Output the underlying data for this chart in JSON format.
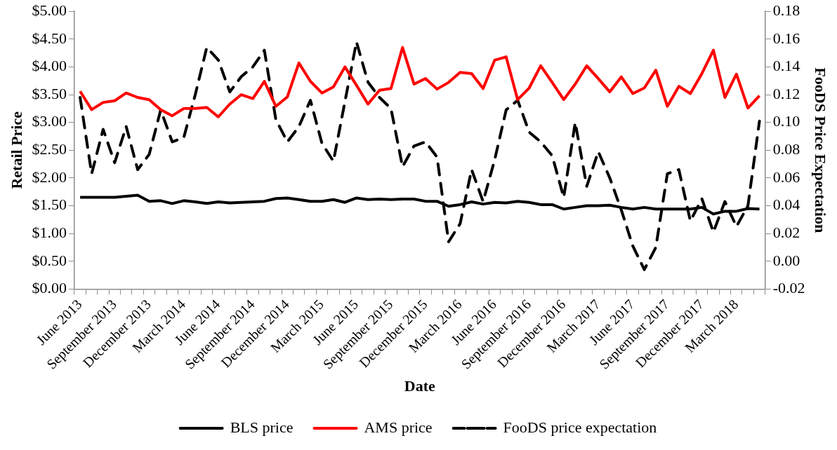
{
  "chart_data": {
    "type": "line",
    "xlabel": "Date",
    "ylabel": "Retail Price",
    "y2label": "FooDS Price Expectation",
    "categories": [
      "June 2013",
      null,
      null,
      "September 2013",
      null,
      null,
      "December 2013",
      null,
      null,
      "March 2014",
      null,
      null,
      "June 2014",
      null,
      null,
      "September 2014",
      null,
      null,
      "December 2014",
      null,
      null,
      "March 2015",
      null,
      null,
      "June 2015",
      null,
      null,
      "September 2015",
      null,
      null,
      "December 2015",
      null,
      null,
      "March 2016",
      null,
      null,
      "June 2016",
      null,
      null,
      "September 2016",
      null,
      null,
      "December 2016",
      null,
      null,
      "March 2017",
      null,
      null,
      "June 2017",
      null,
      null,
      "September 2017",
      null,
      null,
      "December 2017",
      null,
      null,
      "March 2018",
      null,
      null
    ],
    "series": [
      {
        "name": "BLS price",
        "color": "#000000",
        "line_style": "solid",
        "values": [
          1.65,
          1.65,
          1.65,
          1.65,
          1.67,
          1.69,
          1.58,
          1.59,
          1.54,
          1.59,
          1.57,
          1.54,
          1.57,
          1.55,
          1.56,
          1.57,
          1.58,
          1.63,
          1.64,
          1.61,
          1.58,
          1.58,
          1.61,
          1.56,
          1.64,
          1.61,
          1.62,
          1.61,
          1.62,
          1.62,
          1.58,
          1.58,
          1.49,
          1.52,
          1.57,
          1.53,
          1.56,
          1.55,
          1.58,
          1.56,
          1.52,
          1.52,
          1.44,
          1.47,
          1.5,
          1.5,
          1.51,
          1.47,
          1.44,
          1.47,
          1.44,
          1.44,
          1.44,
          1.44,
          1.47,
          1.35,
          1.4,
          1.4,
          1.45,
          1.44
        ]
      },
      {
        "name": "AMS price",
        "color": "#ff0000",
        "line_style": "solid",
        "values": [
          3.56,
          3.23,
          3.36,
          3.39,
          3.53,
          3.45,
          3.41,
          3.23,
          3.12,
          3.25,
          3.25,
          3.27,
          3.1,
          3.33,
          3.5,
          3.43,
          3.74,
          3.29,
          3.46,
          4.07,
          3.74,
          3.53,
          3.64,
          4.0,
          3.67,
          3.33,
          3.58,
          3.61,
          4.35,
          3.69,
          3.79,
          3.6,
          3.72,
          3.9,
          3.88,
          3.61,
          4.12,
          4.18,
          3.41,
          3.62,
          4.02,
          3.72,
          3.41,
          3.69,
          4.02,
          3.79,
          3.55,
          3.82,
          3.52,
          3.62,
          3.94,
          3.29,
          3.65,
          3.52,
          3.88,
          4.3,
          3.45,
          3.87,
          3.26,
          3.48
        ]
      },
      {
        "name": "FooDS price expectation",
        "color": "#000000",
        "line_style": "dashed",
        "axis": "y2",
        "values": [
          0.118,
          0.063,
          0.095,
          0.071,
          0.097,
          0.066,
          0.077,
          0.109,
          0.086,
          0.089,
          0.12,
          0.154,
          0.145,
          0.122,
          0.133,
          0.14,
          0.152,
          0.102,
          0.086,
          0.097,
          0.116,
          0.085,
          0.072,
          0.115,
          0.158,
          0.129,
          0.118,
          0.11,
          0.068,
          0.083,
          0.086,
          0.075,
          0.014,
          0.027,
          0.066,
          0.043,
          0.073,
          0.109,
          0.116,
          0.093,
          0.086,
          0.076,
          0.046,
          0.1,
          0.054,
          0.079,
          0.06,
          0.037,
          0.011,
          -0.006,
          0.01,
          0.063,
          0.066,
          0.029,
          0.045,
          0.021,
          0.043,
          0.025,
          0.04,
          0.101
        ]
      }
    ],
    "ylim": [
      0,
      5
    ],
    "yticks": [
      {
        "value": 0,
        "label": "$0.00"
      },
      {
        "value": 0.5,
        "label": "$0.50"
      },
      {
        "value": 1,
        "label": "$1.00"
      },
      {
        "value": 1.5,
        "label": "$1.50"
      },
      {
        "value": 2,
        "label": "$2.00"
      },
      {
        "value": 2.5,
        "label": "$2.50"
      },
      {
        "value": 3,
        "label": "$3.00"
      },
      {
        "value": 3.5,
        "label": "$3.50"
      },
      {
        "value": 4,
        "label": "$4.00"
      },
      {
        "value": 4.5,
        "label": "$4.50"
      },
      {
        "value": 5,
        "label": "$5.00"
      }
    ],
    "y2lim": [
      -0.02,
      0.18
    ],
    "y2ticks": [
      {
        "value": -0.02,
        "label": "-0.02"
      },
      {
        "value": 0,
        "label": "0.00"
      },
      {
        "value": 0.02,
        "label": "0.02"
      },
      {
        "value": 0.04,
        "label": "0.04"
      },
      {
        "value": 0.06,
        "label": "0.06"
      },
      {
        "value": 0.08,
        "label": "0.08"
      },
      {
        "value": 0.1,
        "label": "0.10"
      },
      {
        "value": 0.12,
        "label": "0.12"
      },
      {
        "value": 0.14,
        "label": "0.14"
      },
      {
        "value": 0.16,
        "label": "0.16"
      },
      {
        "value": 0.18,
        "label": "0.18"
      }
    ],
    "legend": "bottom",
    "marker": "none"
  }
}
